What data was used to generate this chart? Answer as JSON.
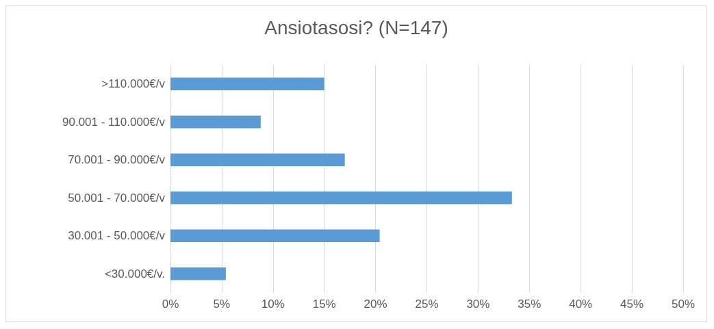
{
  "chart_data": {
    "type": "bar",
    "orientation": "horizontal",
    "title": "Ansiotasosi? (N=147)",
    "categories": [
      ">110.000€/v",
      "90.001 - 110.000€/v",
      "70.001 - 90.000€/v",
      "50.001 - 70.000€/v",
      "30.001 - 50.000€/v",
      "<30.000€/v."
    ],
    "values": [
      15.0,
      8.8,
      17.0,
      33.3,
      20.4,
      5.4
    ],
    "color": "#5b9bd5",
    "xlim": [
      0,
      50
    ],
    "xticks": [
      {
        "value": 0,
        "label": "0%"
      },
      {
        "value": 5,
        "label": "5%"
      },
      {
        "value": 10,
        "label": "10%"
      },
      {
        "value": 15,
        "label": "15%"
      },
      {
        "value": 20,
        "label": "20%"
      },
      {
        "value": 25,
        "label": "25%"
      },
      {
        "value": 30,
        "label": "30%"
      },
      {
        "value": 35,
        "label": "35%"
      },
      {
        "value": 40,
        "label": "40%"
      },
      {
        "value": 45,
        "label": "45%"
      },
      {
        "value": 50,
        "label": "50%"
      }
    ],
    "grid": "x"
  }
}
